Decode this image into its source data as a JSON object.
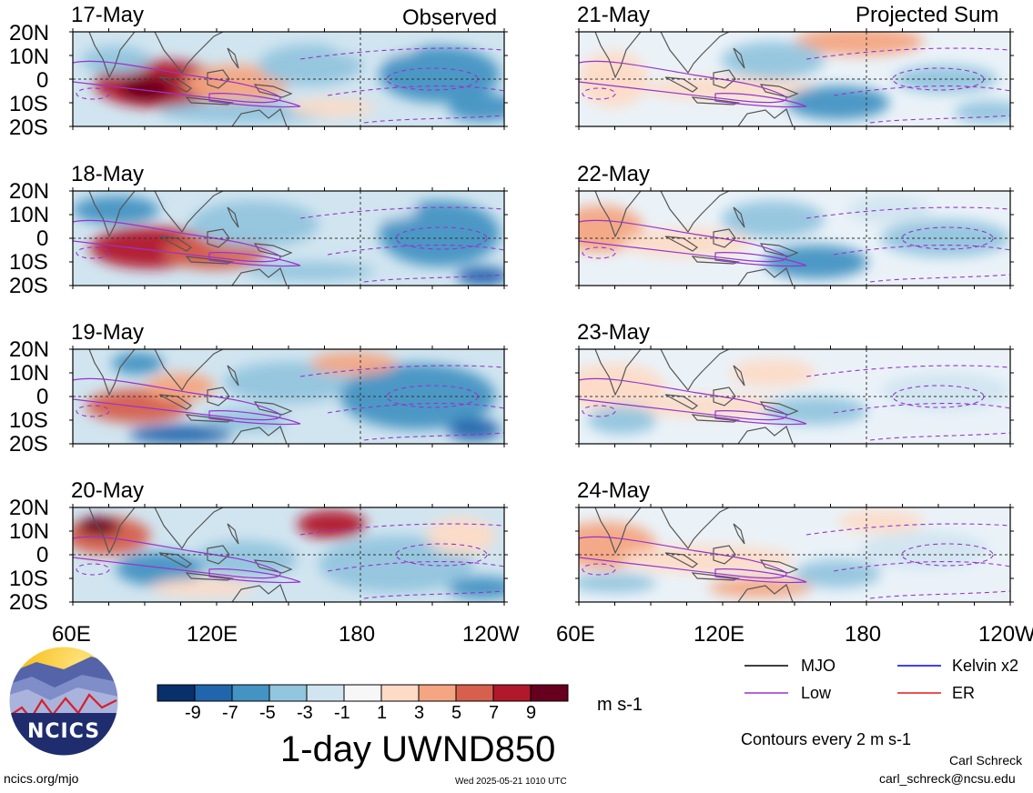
{
  "headers": {
    "left": "Observed",
    "right": "Projected Sum"
  },
  "chart_data": [
    {
      "type": "heatmap",
      "panel": "17-May",
      "column": "Observed"
    },
    {
      "type": "heatmap",
      "panel": "18-May",
      "column": "Observed"
    },
    {
      "type": "heatmap",
      "panel": "19-May",
      "column": "Observed"
    },
    {
      "type": "heatmap",
      "panel": "20-May",
      "column": "Observed"
    },
    {
      "type": "heatmap",
      "panel": "21-May",
      "column": "Projected Sum"
    },
    {
      "type": "heatmap",
      "panel": "22-May",
      "column": "Projected Sum"
    },
    {
      "type": "heatmap",
      "panel": "23-May",
      "column": "Projected Sum"
    },
    {
      "type": "heatmap",
      "panel": "24-May",
      "column": "Projected Sum"
    }
  ],
  "lat_ticks": [
    "20N",
    "10N",
    "0",
    "10S",
    "20S"
  ],
  "lon_ticks": [
    "60E",
    "120E",
    "180",
    "120W"
  ],
  "colorbar": {
    "colors": [
      "#08306b",
      "#2166ac",
      "#4393c3",
      "#92c5de",
      "#d1e5f0",
      "#f7f7f7",
      "#fddbc7",
      "#f4a582",
      "#d6604d",
      "#b2182b",
      "#67001f"
    ],
    "labels": [
      "-9",
      "-7",
      "-5",
      "-3",
      "-1",
      "1",
      "3",
      "5",
      "7",
      "9"
    ],
    "units": "m s-1"
  },
  "title": "1-day UWND850",
  "legend": {
    "items": [
      {
        "label": "MJO",
        "color": "#000000"
      },
      {
        "label": "Kelvin x2",
        "color": "#0000ff"
      },
      {
        "label": "Low",
        "color": "#9933cc"
      },
      {
        "label": "ER",
        "color": "#e8171a"
      }
    ],
    "contours": "Contours every 2 m s-1"
  },
  "footer": {
    "site": "ncics.org/mjo",
    "timestamp": "Wed 2025-05-21 1010 UTC",
    "author": "Carl Schreck",
    "email": "carl_schreck@ncsu.edu",
    "logo_text": "NCICS"
  }
}
